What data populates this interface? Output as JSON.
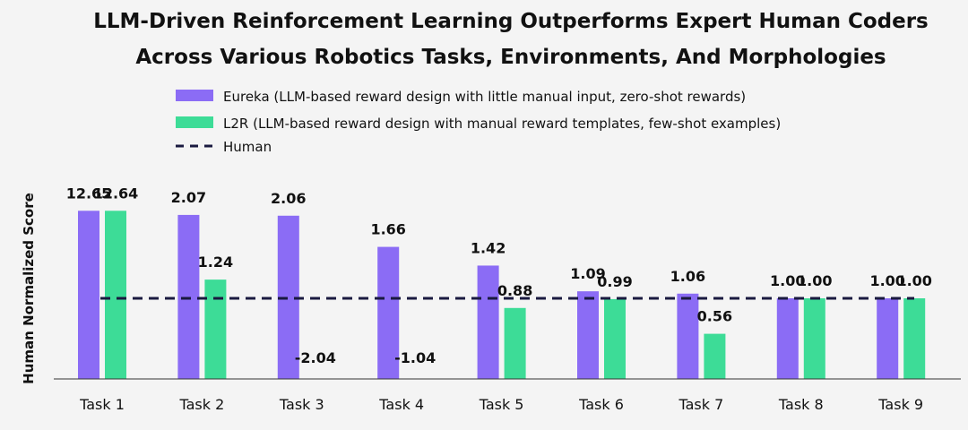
{
  "chart_data": {
    "type": "bar",
    "title_line1": "LLM-Driven Reinforcement Learning Outperforms Expert Human Coders",
    "title_line2": "Across Various Robotics Tasks, Environments, And Morphologies",
    "ylabel": "Human Normalized Score",
    "xlabel": "",
    "categories": [
      "Task 1",
      "Task 2",
      "Task 3",
      "Task 4",
      "Task 5",
      "Task 6",
      "Task 7",
      "Task 8",
      "Task 9"
    ],
    "series": [
      {
        "name": "Eureka",
        "legend": "Eureka (LLM-based reward design with little manual input, zero-shot rewards)",
        "color": "#8b6cf5",
        "values": [
          12.65,
          2.07,
          2.06,
          1.66,
          1.42,
          1.09,
          1.06,
          1.0,
          1.0
        ],
        "labels": [
          "12.65",
          "2.07",
          "2.06",
          "1.66",
          "1.42",
          "1.09",
          "1.06",
          "1.00",
          "1.00"
        ]
      },
      {
        "name": "L2R",
        "legend": "L2R (LLM-based reward design with manual reward templates, few-shot examples)",
        "color": "#3ddc97",
        "values": [
          12.64,
          1.24,
          -2.04,
          -1.04,
          0.88,
          0.99,
          0.56,
          1.0,
          1.0
        ],
        "labels": [
          "12.64",
          "1.24",
          "-2.04",
          "-1.04",
          "0.88",
          "0.99",
          "0.56",
          "1.00",
          "1.00"
        ]
      }
    ],
    "reference_line": {
      "name": "Human",
      "legend": "Human",
      "value": 1.0,
      "style": "dashed",
      "color": "#1a1a40"
    },
    "grid": false,
    "legend_position": "top-center"
  }
}
